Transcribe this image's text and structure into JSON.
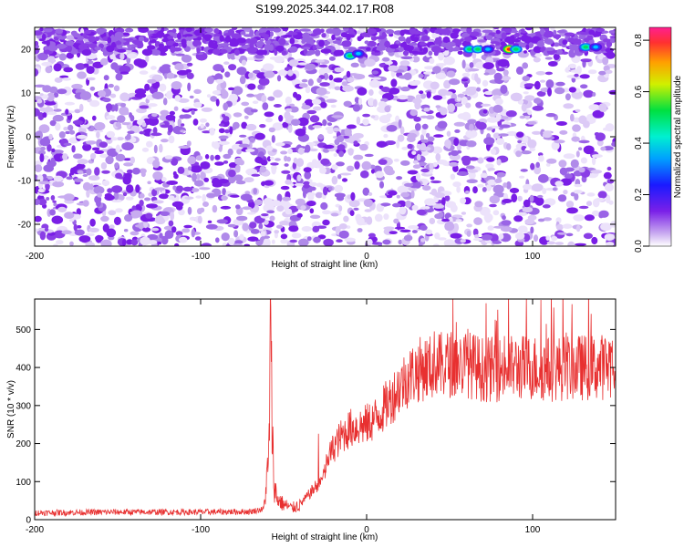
{
  "title": "S199.2025.344.02.17.R08",
  "chart_data": [
    {
      "type": "heatmap",
      "xlabel": "Height of straight line (km)",
      "ylabel": "Frequency (Hz)",
      "xlim": [
        -200,
        150
      ],
      "ylim": [
        -25,
        25
      ],
      "xticks": [
        -200,
        -100,
        0,
        100
      ],
      "yticks": [
        -20,
        -10,
        0,
        10,
        20
      ],
      "colorbar": {
        "label": "Normalized spectral amplitude",
        "range": [
          0.0,
          0.85
        ],
        "ticks": [
          0.0,
          0.2,
          0.4,
          0.6,
          0.8
        ],
        "colormap": "rainbow (white-purple-blue-cyan-green-yellow-orange-red)"
      },
      "features": [
        {
          "x": -10,
          "y": 18.5,
          "amplitude": 0.45
        },
        {
          "x": -5,
          "y": 19,
          "amplitude": 0.35
        },
        {
          "x": 62,
          "y": 20,
          "amplitude": 0.5
        },
        {
          "x": 67,
          "y": 20,
          "amplitude": 0.45
        },
        {
          "x": 73,
          "y": 20,
          "amplitude": 0.35
        },
        {
          "x": 86,
          "y": 20,
          "amplitude": 0.65
        },
        {
          "x": 90,
          "y": 20,
          "amplitude": 0.45
        },
        {
          "x": 132,
          "y": 20.5,
          "amplitude": 0.5
        },
        {
          "x": 138,
          "y": 20.5,
          "amplitude": 0.4
        }
      ]
    },
    {
      "type": "line",
      "xlabel": "Height of straight line (km)",
      "ylabel": "SNR (10 * v/v)",
      "xlim": [
        -200,
        150
      ],
      "ylim": [
        0,
        580
      ],
      "xticks": [
        -200,
        -100,
        0,
        100
      ],
      "yticks": [
        0,
        100,
        200,
        300,
        400,
        500
      ],
      "color": "#e83030",
      "x": [
        -200,
        -150,
        -100,
        -70,
        -62,
        -59,
        -58,
        -56,
        -54,
        -50,
        -45,
        -40,
        -35,
        -30,
        -26,
        -24,
        -20,
        -15,
        -10,
        -5,
        0,
        5,
        10,
        15,
        20,
        25,
        30,
        35,
        40,
        45,
        50,
        55,
        60,
        70,
        80,
        90,
        100,
        110,
        120,
        130,
        140,
        145,
        150
      ],
      "y": [
        18,
        20,
        20,
        21,
        28,
        150,
        465,
        100,
        55,
        40,
        30,
        40,
        65,
        90,
        110,
        150,
        190,
        220,
        240,
        245,
        250,
        265,
        290,
        320,
        350,
        375,
        390,
        400,
        400,
        405,
        410,
        408,
        410,
        395,
        395,
        400,
        400,
        395,
        400,
        400,
        400,
        405,
        420
      ]
    }
  ]
}
